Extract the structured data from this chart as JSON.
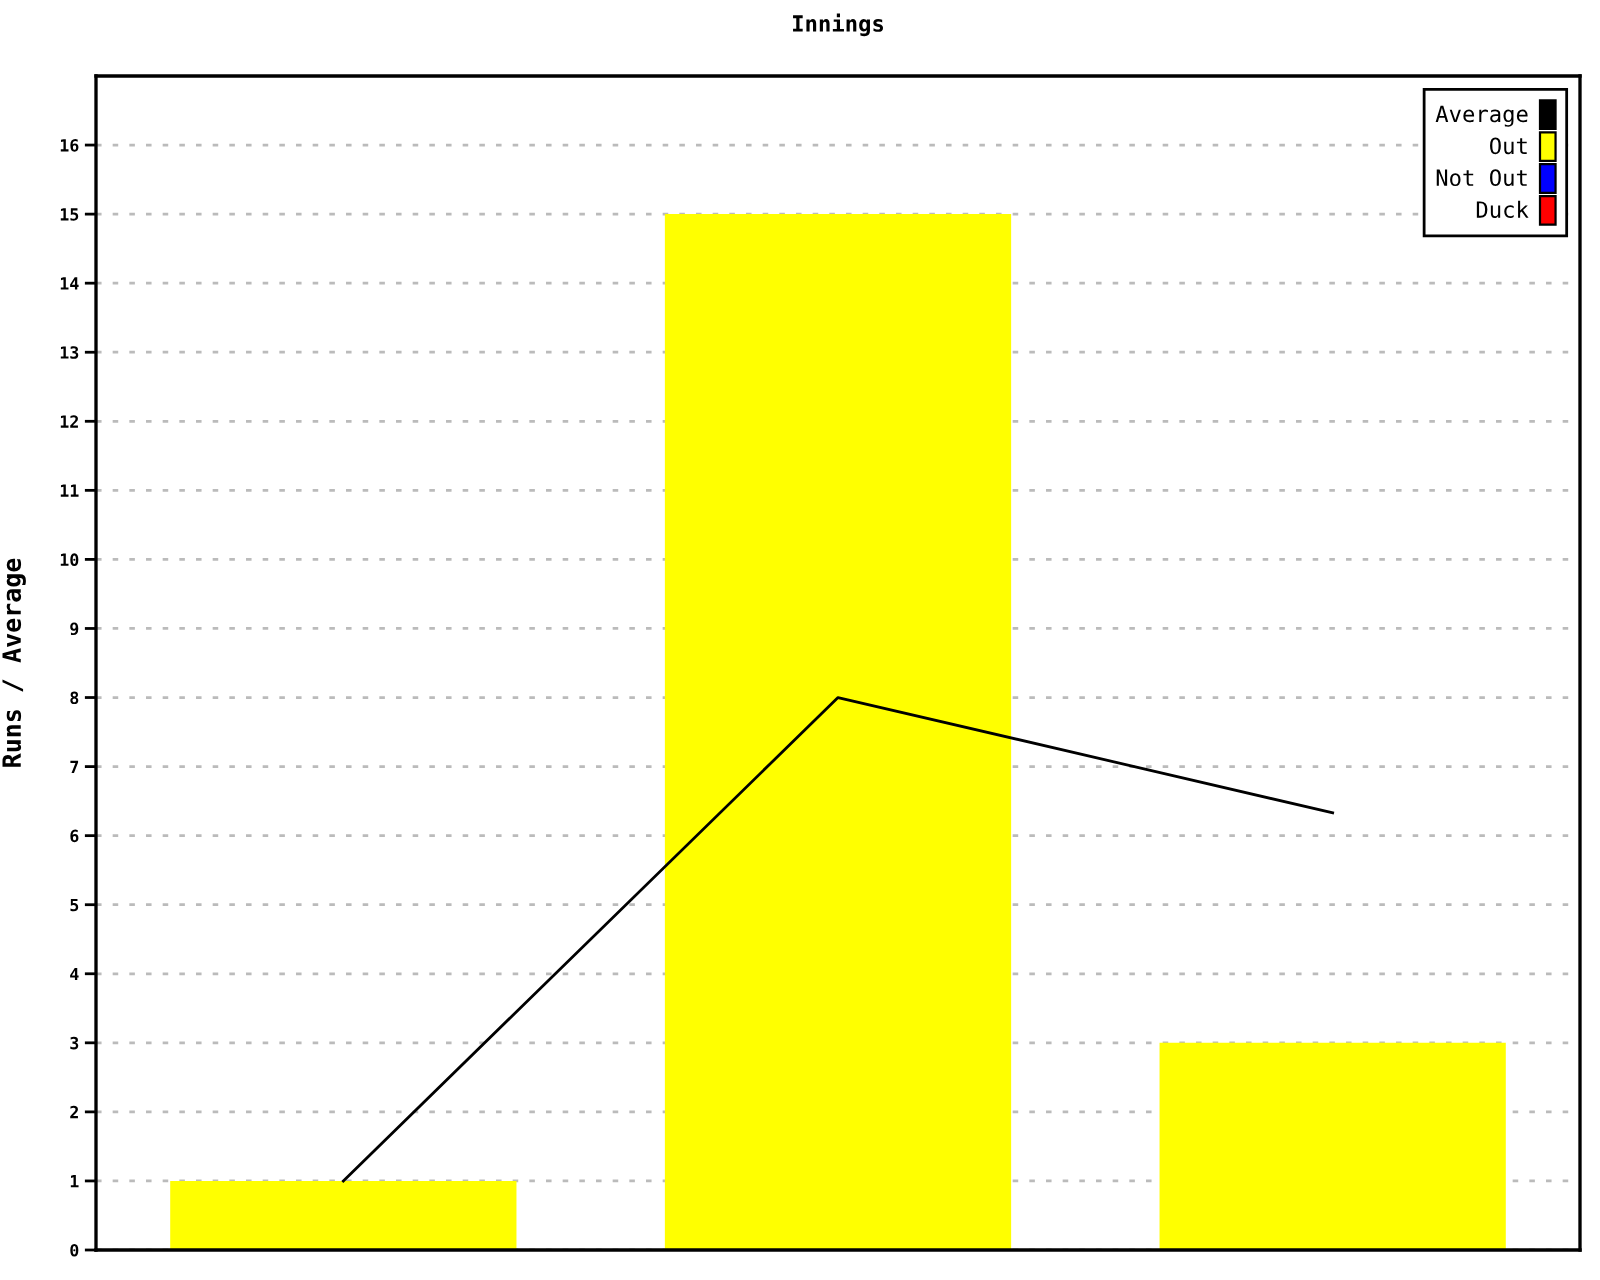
{
  "chart_data": {
    "type": "bar",
    "title": "Innings",
    "ylabel": "Runs / Average",
    "categories": [
      null,
      null,
      null
    ],
    "series": [
      {
        "name": "Average",
        "type": "line",
        "color": "#000000",
        "values": [
          1,
          8,
          6.33
        ]
      },
      {
        "name": "Out",
        "color": "#ffff00",
        "values": [
          1,
          15,
          3
        ]
      },
      {
        "name": "Not Out",
        "color": "#0000ff",
        "values": [
          null,
          null,
          null
        ]
      },
      {
        "name": "Duck",
        "color": "#ff0000",
        "values": [
          null,
          null,
          null
        ]
      }
    ],
    "stacked": true,
    "ylim": [
      0,
      17
    ],
    "yticks": [
      0,
      1,
      2,
      3,
      4,
      5,
      6,
      7,
      8,
      9,
      10,
      11,
      12,
      13,
      14,
      15,
      16
    ],
    "grid": "y",
    "legend": "top right",
    "marker": "none",
    "line_style": "solid"
  }
}
